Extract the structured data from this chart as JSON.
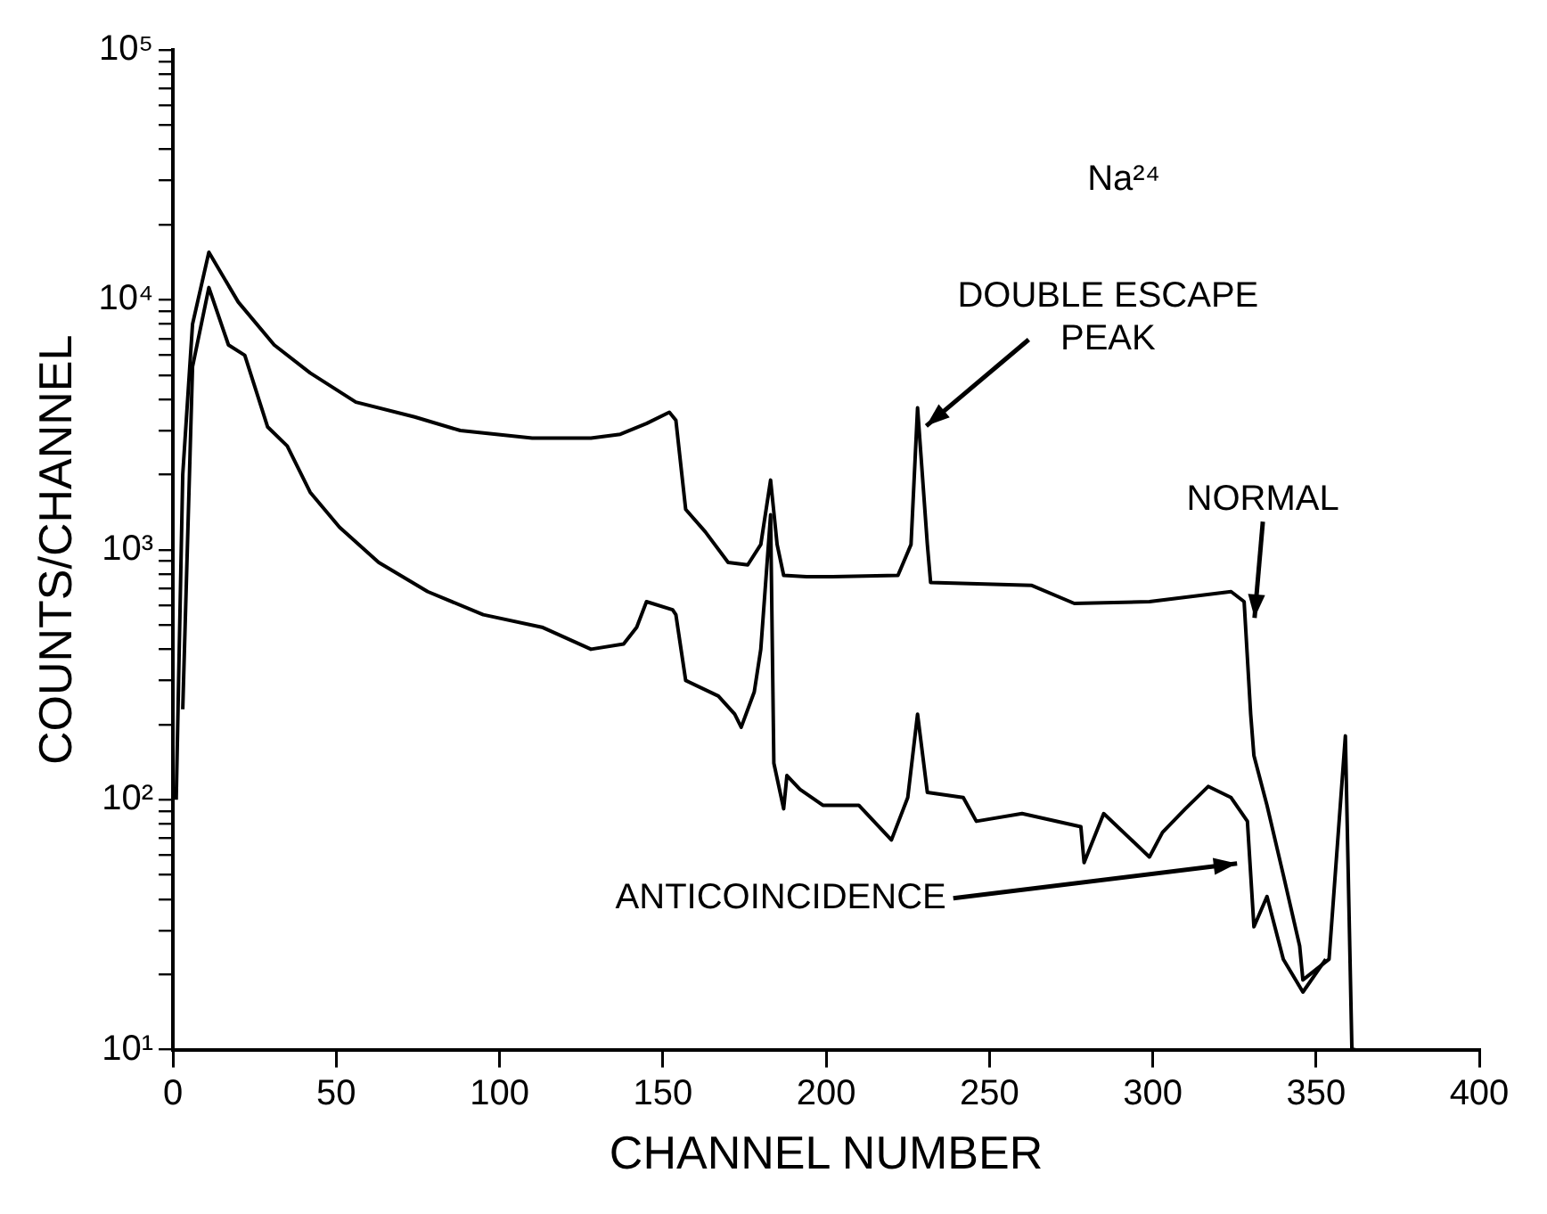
{
  "chart_data": {
    "type": "line",
    "xlabel": "CHANNEL NUMBER",
    "ylabel": "COUNTS/CHANNEL",
    "log": "y",
    "grid": false,
    "legend": false,
    "marker": "none",
    "line_style": "solid",
    "xlim": [
      0,
      400
    ],
    "xticks": [
      0,
      50,
      100,
      150,
      200,
      250,
      300,
      350,
      400
    ],
    "ylim": [
      10,
      100000
    ],
    "yticks": [
      {
        "value": 10,
        "label": "10¹"
      },
      {
        "value": 20,
        "label": null
      },
      {
        "value": 30,
        "label": null
      },
      {
        "value": 40,
        "label": null
      },
      {
        "value": 50,
        "label": null
      },
      {
        "value": 60,
        "label": null
      },
      {
        "value": 70,
        "label": null
      },
      {
        "value": 80,
        "label": null
      },
      {
        "value": 90,
        "label": null
      },
      {
        "value": 100,
        "label": "10²"
      },
      {
        "value": 200,
        "label": null
      },
      {
        "value": 300,
        "label": null
      },
      {
        "value": 400,
        "label": null
      },
      {
        "value": 500,
        "label": null
      },
      {
        "value": 600,
        "label": null
      },
      {
        "value": 700,
        "label": null
      },
      {
        "value": 800,
        "label": null
      },
      {
        "value": 900,
        "label": null
      },
      {
        "value": 1000,
        "label": "10³"
      },
      {
        "value": 2000,
        "label": null
      },
      {
        "value": 3000,
        "label": null
      },
      {
        "value": 4000,
        "label": null
      },
      {
        "value": 5000,
        "label": null
      },
      {
        "value": 6000,
        "label": null
      },
      {
        "value": 7000,
        "label": null
      },
      {
        "value": 8000,
        "label": null
      },
      {
        "value": 9000,
        "label": null
      },
      {
        "value": 10000,
        "label": "10⁴"
      },
      {
        "value": 20000,
        "label": null
      },
      {
        "value": 30000,
        "label": null
      },
      {
        "value": 40000,
        "label": null
      },
      {
        "value": 50000,
        "label": null
      },
      {
        "value": 60000,
        "label": null
      },
      {
        "value": 70000,
        "label": null
      },
      {
        "value": 80000,
        "label": null
      },
      {
        "value": 90000,
        "label": null
      },
      {
        "value": 100000,
        "label": "10⁵"
      }
    ],
    "series": [
      {
        "color": "#000000",
        "x": [
          1,
          3,
          6,
          11,
          20,
          31,
          42,
          56,
          74,
          88,
          110,
          128,
          137,
          145,
          152,
          154,
          157,
          163,
          170,
          176,
          180,
          183,
          185,
          187,
          194,
          202,
          222,
          226,
          228,
          231,
          232,
          263,
          276,
          299,
          324,
          328,
          330,
          331,
          335,
          340,
          345,
          346,
          354,
          359,
          361,
          362
        ],
        "values": [
          100,
          2000,
          8000,
          15500,
          9800,
          6600,
          5100,
          3900,
          3400,
          3000,
          2800,
          2800,
          2900,
          3200,
          3550,
          3300,
          1450,
          1180,
          890,
          870,
          1050,
          1900,
          1050,
          790,
          780,
          780,
          790,
          1050,
          3700,
          1050,
          740,
          720,
          610,
          620,
          680,
          620,
          220,
          150,
          95,
          50,
          26,
          19,
          23,
          180,
          10,
          10
        ]
      },
      {
        "color": "#000000",
        "x": [
          3,
          6,
          11,
          17,
          22,
          29,
          35,
          42,
          51,
          63,
          78,
          95,
          113,
          128,
          138,
          142,
          145,
          153,
          154,
          157,
          167,
          172,
          174,
          178,
          180,
          183,
          184,
          187,
          188,
          192,
          199,
          210,
          220,
          225,
          228,
          231,
          242,
          246,
          260,
          278,
          279,
          285,
          299,
          303,
          310,
          317,
          324,
          329,
          331,
          335,
          340,
          346,
          353
        ],
        "values": [
          230,
          5400,
          11200,
          6600,
          6000,
          3100,
          2600,
          1700,
          1230,
          890,
          680,
          550,
          490,
          400,
          420,
          490,
          620,
          575,
          550,
          300,
          260,
          220,
          195,
          270,
          400,
          1380,
          140,
          92,
          125,
          110,
          95,
          95,
          69,
          102,
          220,
          107,
          102,
          82,
          88,
          78,
          56,
          88,
          59,
          74,
          92,
          113,
          102,
          82,
          31,
          41,
          23,
          17,
          23
        ]
      }
    ],
    "annotations": [
      "Na²⁴",
      {
        "text": "DOUBLE ESCAPE\nPEAK",
        "x": 229,
        "y": 3000
      },
      {
        "text": "NORMAL",
        "x": 331,
        "y": 500
      },
      {
        "text": "ANTICOINCIDENCE",
        "x": 328,
        "y": 56
      }
    ]
  }
}
